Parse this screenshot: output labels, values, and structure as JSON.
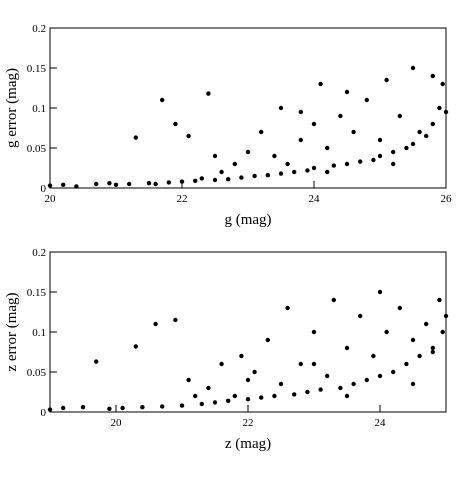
{
  "chart_data": [
    {
      "type": "scatter",
      "x_label": "g (mag)",
      "y_label": "g error (mag)",
      "xlim": [
        20,
        26
      ],
      "ylim": [
        0,
        0.2
      ],
      "xticks": [
        20,
        22,
        24,
        26
      ],
      "yticks": [
        0,
        0.05,
        0.1,
        0.15,
        0.2
      ],
      "color": "#000000",
      "x": [
        20.0,
        20.2,
        20.4,
        20.7,
        20.9,
        21.0,
        21.2,
        21.3,
        21.5,
        21.6,
        21.7,
        21.8,
        21.9,
        22.0,
        22.1,
        22.2,
        22.3,
        22.4,
        22.5,
        22.6,
        22.7,
        22.8,
        22.9,
        23.0,
        23.1,
        23.2,
        23.3,
        23.4,
        23.5,
        23.5,
        23.6,
        23.7,
        23.8,
        23.9,
        24.0,
        24.0,
        24.1,
        24.2,
        24.3,
        24.4,
        24.5,
        24.6,
        24.7,
        24.8,
        24.9,
        25.0,
        25.0,
        25.1,
        25.2,
        25.3,
        25.4,
        25.5,
        25.5,
        25.6,
        25.7,
        25.8,
        25.8,
        25.9,
        26.0,
        25.95,
        24.5,
        23.8,
        22.5,
        24.2,
        25.2
      ],
      "y": [
        0.003,
        0.004,
        0.002,
        0.005,
        0.006,
        0.004,
        0.005,
        0.063,
        0.006,
        0.005,
        0.11,
        0.007,
        0.08,
        0.008,
        0.065,
        0.009,
        0.012,
        0.118,
        0.01,
        0.02,
        0.011,
        0.03,
        0.013,
        0.045,
        0.015,
        0.07,
        0.016,
        0.04,
        0.018,
        0.1,
        0.03,
        0.02,
        0.06,
        0.022,
        0.08,
        0.025,
        0.13,
        0.05,
        0.028,
        0.09,
        0.03,
        0.07,
        0.033,
        0.11,
        0.035,
        0.06,
        0.04,
        0.135,
        0.045,
        0.09,
        0.05,
        0.15,
        0.055,
        0.07,
        0.065,
        0.14,
        0.08,
        0.1,
        0.095,
        0.13,
        0.12,
        0.095,
        0.04,
        0.02,
        0.03
      ]
    },
    {
      "type": "scatter",
      "x_label": "z (mag)",
      "y_label": "z error (mag)",
      "xlim": [
        19,
        25
      ],
      "ylim": [
        0,
        0.2
      ],
      "xticks": [
        20,
        22,
        24
      ],
      "yticks": [
        0,
        0.05,
        0.1,
        0.15,
        0.2
      ],
      "color": "#000000",
      "x": [
        19.0,
        19.2,
        19.5,
        19.7,
        19.9,
        20.1,
        20.3,
        20.4,
        20.6,
        20.7,
        20.9,
        21.0,
        21.1,
        21.3,
        21.4,
        21.5,
        21.6,
        21.7,
        21.8,
        21.9,
        22.0,
        22.1,
        22.2,
        22.3,
        22.4,
        22.5,
        22.6,
        22.7,
        22.8,
        22.9,
        23.0,
        23.1,
        23.2,
        23.3,
        23.4,
        23.5,
        23.6,
        23.7,
        23.8,
        23.9,
        24.0,
        24.0,
        24.1,
        24.2,
        24.3,
        24.4,
        24.5,
        24.6,
        24.7,
        24.8,
        24.9,
        25.0,
        24.95,
        23.5,
        22.0,
        24.5,
        23.0,
        21.2,
        24.8
      ],
      "y": [
        0.003,
        0.005,
        0.006,
        0.063,
        0.004,
        0.005,
        0.082,
        0.006,
        0.11,
        0.007,
        0.115,
        0.008,
        0.04,
        0.01,
        0.03,
        0.012,
        0.06,
        0.014,
        0.02,
        0.07,
        0.016,
        0.05,
        0.018,
        0.09,
        0.02,
        0.035,
        0.13,
        0.022,
        0.06,
        0.025,
        0.1,
        0.028,
        0.045,
        0.14,
        0.03,
        0.08,
        0.035,
        0.12,
        0.04,
        0.07,
        0.15,
        0.045,
        0.1,
        0.05,
        0.13,
        0.06,
        0.09,
        0.07,
        0.11,
        0.08,
        0.14,
        0.12,
        0.1,
        0.02,
        0.04,
        0.035,
        0.06,
        0.02,
        0.075
      ]
    }
  ]
}
